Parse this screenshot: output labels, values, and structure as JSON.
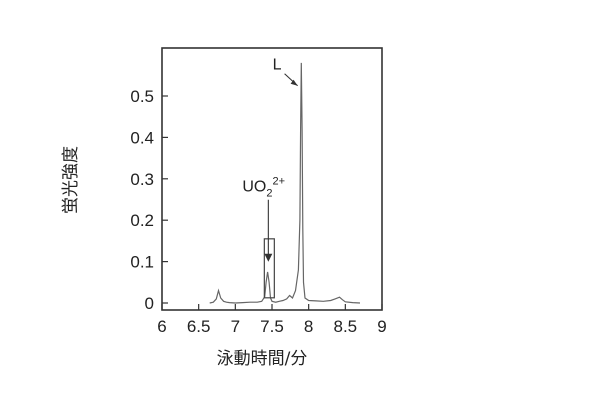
{
  "chart_data": {
    "type": "line",
    "title": "",
    "xlabel": "泳動時間/分",
    "ylabel": "蛍光強度",
    "xlim": [
      6,
      9
    ],
    "ylim": [
      0,
      0.58
    ],
    "x_ticks": [
      "6",
      "6.5",
      "7",
      "7.5",
      "8",
      "8.5",
      "9"
    ],
    "y_ticks": [
      "0",
      "0.1",
      "0.2",
      "0.3",
      "0.4",
      "0.5"
    ],
    "grid": false,
    "series": [
      {
        "x": [
          6.65,
          6.7,
          6.74,
          6.77,
          6.8,
          6.84,
          6.88,
          6.92,
          7.0,
          7.1,
          7.2,
          7.3,
          7.36,
          7.4,
          7.42,
          7.44,
          7.46,
          7.48,
          7.5,
          7.55,
          7.6,
          7.65,
          7.7,
          7.74,
          7.78,
          7.82,
          7.86,
          7.88,
          7.89,
          7.9,
          7.91,
          7.92,
          7.93,
          7.95,
          8.0,
          8.1,
          8.2,
          8.3,
          8.36,
          8.42,
          8.46,
          8.5,
          8.6,
          8.7
        ],
        "y": [
          0.0,
          0.002,
          0.01,
          0.03,
          0.012,
          0.004,
          0.002,
          0.001,
          0.0,
          0.001,
          0.002,
          0.002,
          0.004,
          0.015,
          0.05,
          0.075,
          0.05,
          0.012,
          0.004,
          0.002,
          0.004,
          0.006,
          0.01,
          0.018,
          0.012,
          0.03,
          0.08,
          0.2,
          0.42,
          0.58,
          0.42,
          0.18,
          0.05,
          0.012,
          0.006,
          0.005,
          0.004,
          0.006,
          0.01,
          0.014,
          0.008,
          0.003,
          0.001,
          0.0
        ]
      }
    ],
    "annotations": [
      {
        "text": "L",
        "target_x": 7.89,
        "target_y": 0.52
      },
      {
        "text": "UO",
        "sub": "2",
        "sup": "2+",
        "target_x": 7.45,
        "target_y": 0.09
      }
    ]
  }
}
